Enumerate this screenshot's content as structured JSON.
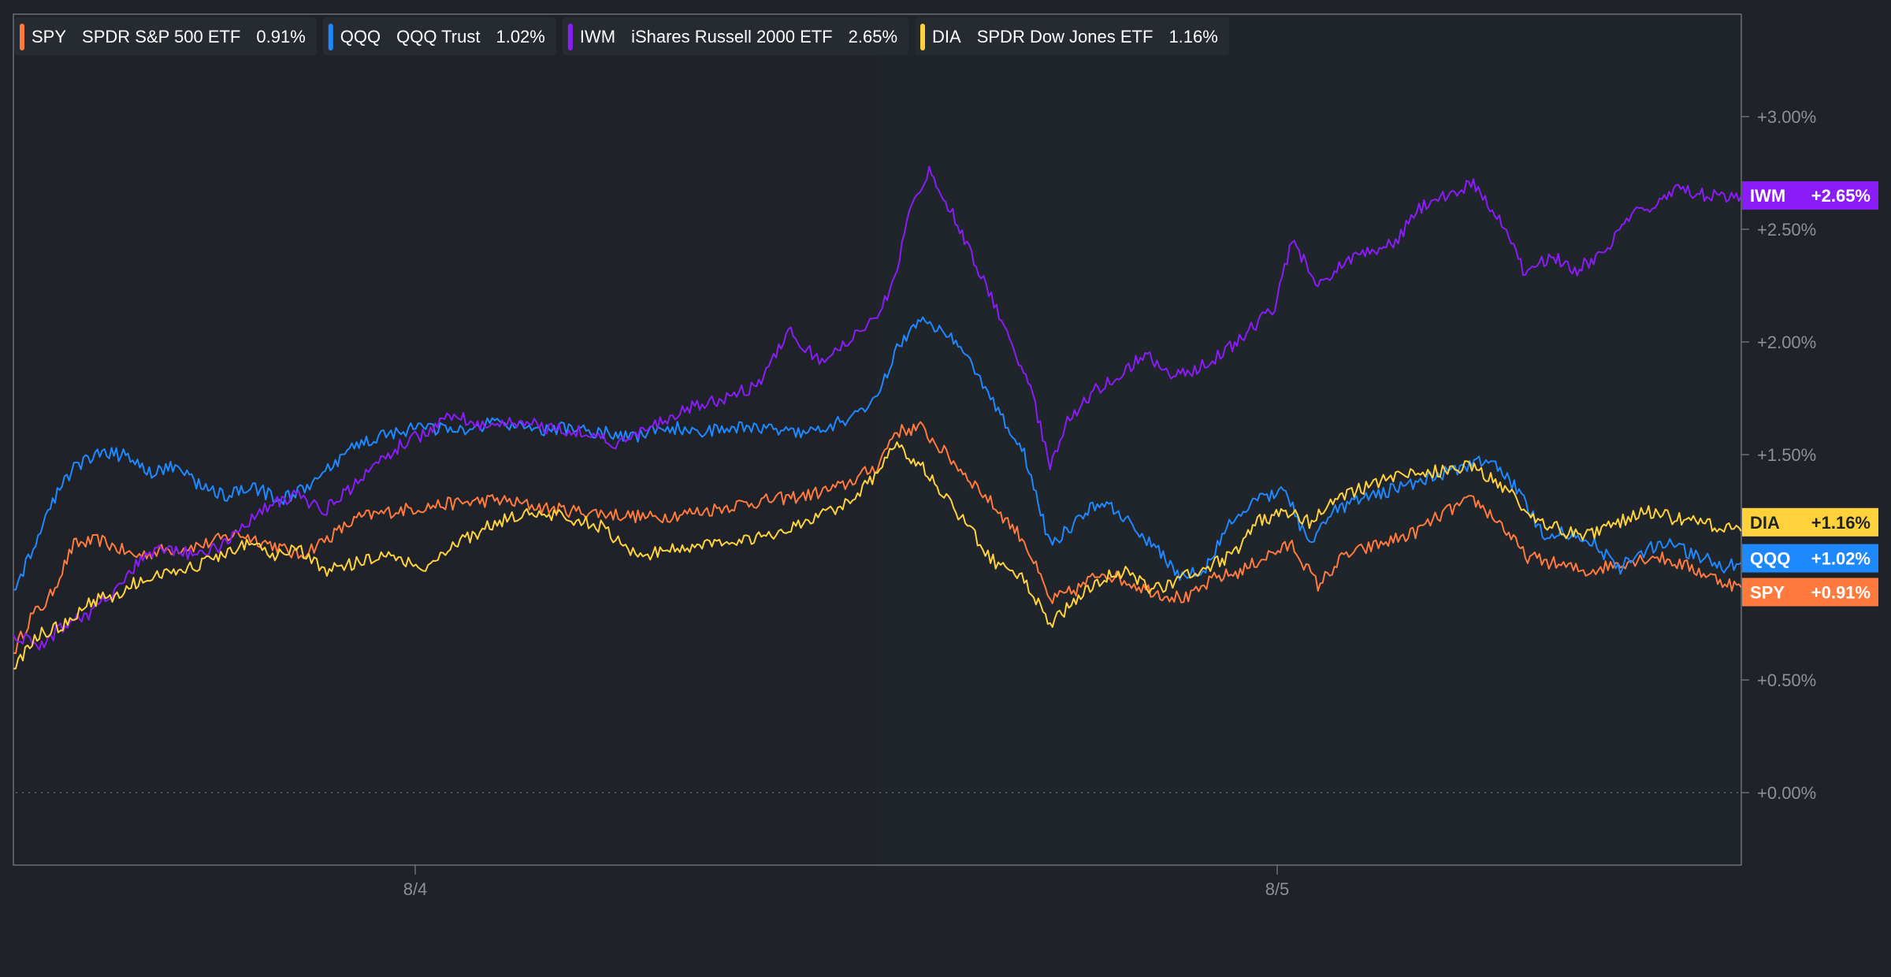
{
  "legend": [
    {
      "symbol": "SPY",
      "name": "SPDR S&P 500 ETF",
      "value": "0.91%",
      "color": "#ff7a3c"
    },
    {
      "symbol": "QQQ",
      "name": "QQQ Trust",
      "value": "1.02%",
      "color": "#1e88ff"
    },
    {
      "symbol": "IWM",
      "name": "iShares Russell 2000 ETF",
      "value": "2.65%",
      "color": "#8a1cf7"
    },
    {
      "symbol": "DIA",
      "name": "SPDR Dow Jones ETF",
      "value": "1.16%",
      "color": "#ffd23c"
    }
  ],
  "end_labels": [
    {
      "symbol": "IWM",
      "value": "+2.65%",
      "color": "#8a1cf7",
      "text_color": "#ffffff"
    },
    {
      "symbol": "DIA",
      "value": "+1.16%",
      "color": "#ffd23c",
      "text_color": "#1f2329"
    },
    {
      "symbol": "QQQ",
      "value": "+1.02%",
      "color": "#1e88ff",
      "text_color": "#ffffff"
    },
    {
      "symbol": "SPY",
      "value": "+0.91%",
      "color": "#ff7a3c",
      "text_color": "#ffffff"
    }
  ],
  "chart_data": {
    "type": "line",
    "x_ticks": [
      "8/4",
      "8/5"
    ],
    "y_ticks": [
      "+0.00%",
      "+0.50%",
      "+1.50%",
      "+2.00%",
      "+2.50%",
      "+3.00%"
    ],
    "ylim": [
      -0.32,
      3.45
    ],
    "zero_line": true,
    "legend_position": "top-left",
    "series": [
      {
        "name": "SPY",
        "color": "#ff7a3c",
        "points": [
          [
            0,
            0.62
          ],
          [
            0.01,
            0.78
          ],
          [
            0.02,
            0.85
          ],
          [
            0.035,
            1.1
          ],
          [
            0.05,
            1.12
          ],
          [
            0.07,
            1.05
          ],
          [
            0.09,
            1.08
          ],
          [
            0.11,
            1.1
          ],
          [
            0.13,
            1.15
          ],
          [
            0.15,
            1.1
          ],
          [
            0.165,
            1.05
          ],
          [
            0.18,
            1.12
          ],
          [
            0.2,
            1.22
          ],
          [
            0.22,
            1.25
          ],
          [
            0.25,
            1.28
          ],
          [
            0.28,
            1.3
          ],
          [
            0.31,
            1.26
          ],
          [
            0.34,
            1.24
          ],
          [
            0.37,
            1.22
          ],
          [
            0.4,
            1.25
          ],
          [
            0.42,
            1.28
          ],
          [
            0.44,
            1.3
          ],
          [
            0.46,
            1.32
          ],
          [
            0.48,
            1.36
          ],
          [
            0.5,
            1.45
          ],
          [
            0.51,
            1.6
          ],
          [
            0.525,
            1.62
          ],
          [
            0.54,
            1.5
          ],
          [
            0.555,
            1.38
          ],
          [
            0.57,
            1.25
          ],
          [
            0.585,
            1.12
          ],
          [
            0.6,
            0.85
          ],
          [
            0.615,
            0.9
          ],
          [
            0.63,
            0.98
          ],
          [
            0.65,
            0.92
          ],
          [
            0.665,
            0.88
          ],
          [
            0.68,
            0.86
          ],
          [
            0.695,
            0.95
          ],
          [
            0.71,
            0.98
          ],
          [
            0.725,
            1.05
          ],
          [
            0.74,
            1.1
          ],
          [
            0.755,
            0.92
          ],
          [
            0.77,
            1.05
          ],
          [
            0.79,
            1.1
          ],
          [
            0.81,
            1.15
          ],
          [
            0.83,
            1.25
          ],
          [
            0.845,
            1.3
          ],
          [
            0.86,
            1.2
          ],
          [
            0.875,
            1.05
          ],
          [
            0.89,
            1.02
          ],
          [
            0.91,
            0.98
          ],
          [
            0.93,
            1.02
          ],
          [
            0.95,
            1.05
          ],
          [
            0.97,
            1.0
          ],
          [
            0.985,
            0.95
          ],
          [
            1,
            0.91
          ]
        ]
      },
      {
        "name": "QQQ",
        "color": "#1e88ff",
        "points": [
          [
            0,
            0.9
          ],
          [
            0.01,
            1.05
          ],
          [
            0.02,
            1.25
          ],
          [
            0.035,
            1.45
          ],
          [
            0.05,
            1.5
          ],
          [
            0.065,
            1.5
          ],
          [
            0.08,
            1.42
          ],
          [
            0.095,
            1.45
          ],
          [
            0.11,
            1.35
          ],
          [
            0.125,
            1.32
          ],
          [
            0.14,
            1.35
          ],
          [
            0.155,
            1.3
          ],
          [
            0.17,
            1.35
          ],
          [
            0.185,
            1.45
          ],
          [
            0.2,
            1.55
          ],
          [
            0.22,
            1.6
          ],
          [
            0.24,
            1.62
          ],
          [
            0.26,
            1.6
          ],
          [
            0.28,
            1.65
          ],
          [
            0.3,
            1.6
          ],
          [
            0.32,
            1.62
          ],
          [
            0.34,
            1.6
          ],
          [
            0.36,
            1.58
          ],
          [
            0.38,
            1.62
          ],
          [
            0.4,
            1.6
          ],
          [
            0.42,
            1.62
          ],
          [
            0.44,
            1.62
          ],
          [
            0.46,
            1.6
          ],
          [
            0.48,
            1.65
          ],
          [
            0.5,
            1.75
          ],
          [
            0.51,
            1.95
          ],
          [
            0.525,
            2.1
          ],
          [
            0.54,
            2.05
          ],
          [
            0.555,
            1.9
          ],
          [
            0.57,
            1.7
          ],
          [
            0.585,
            1.5
          ],
          [
            0.6,
            1.1
          ],
          [
            0.615,
            1.2
          ],
          [
            0.63,
            1.3
          ],
          [
            0.645,
            1.2
          ],
          [
            0.66,
            1.1
          ],
          [
            0.675,
            0.95
          ],
          [
            0.69,
            1.0
          ],
          [
            0.705,
            1.2
          ],
          [
            0.72,
            1.3
          ],
          [
            0.735,
            1.35
          ],
          [
            0.75,
            1.1
          ],
          [
            0.765,
            1.25
          ],
          [
            0.78,
            1.3
          ],
          [
            0.8,
            1.35
          ],
          [
            0.82,
            1.4
          ],
          [
            0.84,
            1.45
          ],
          [
            0.855,
            1.48
          ],
          [
            0.87,
            1.35
          ],
          [
            0.885,
            1.15
          ],
          [
            0.9,
            1.15
          ],
          [
            0.915,
            1.1
          ],
          [
            0.93,
            1.0
          ],
          [
            0.945,
            1.08
          ],
          [
            0.96,
            1.1
          ],
          [
            0.975,
            1.05
          ],
          [
            0.99,
            1.0
          ],
          [
            1,
            1.02
          ]
        ]
      },
      {
        "name": "IWM",
        "color": "#8a1cf7",
        "points": [
          [
            0,
            0.7
          ],
          [
            0.015,
            0.65
          ],
          [
            0.03,
            0.75
          ],
          [
            0.045,
            0.8
          ],
          [
            0.06,
            0.9
          ],
          [
            0.075,
            1.05
          ],
          [
            0.09,
            1.08
          ],
          [
            0.105,
            1.05
          ],
          [
            0.12,
            1.1
          ],
          [
            0.135,
            1.2
          ],
          [
            0.15,
            1.28
          ],
          [
            0.165,
            1.32
          ],
          [
            0.18,
            1.25
          ],
          [
            0.195,
            1.35
          ],
          [
            0.21,
            1.45
          ],
          [
            0.225,
            1.55
          ],
          [
            0.24,
            1.6
          ],
          [
            0.255,
            1.68
          ],
          [
            0.27,
            1.62
          ],
          [
            0.29,
            1.65
          ],
          [
            0.31,
            1.62
          ],
          [
            0.33,
            1.6
          ],
          [
            0.35,
            1.55
          ],
          [
            0.37,
            1.62
          ],
          [
            0.39,
            1.7
          ],
          [
            0.41,
            1.75
          ],
          [
            0.43,
            1.8
          ],
          [
            0.45,
            2.05
          ],
          [
            0.465,
            1.92
          ],
          [
            0.48,
            1.98
          ],
          [
            0.5,
            2.1
          ],
          [
            0.51,
            2.3
          ],
          [
            0.52,
            2.6
          ],
          [
            0.53,
            2.75
          ],
          [
            0.545,
            2.55
          ],
          [
            0.56,
            2.3
          ],
          [
            0.575,
            2.05
          ],
          [
            0.59,
            1.75
          ],
          [
            0.6,
            1.45
          ],
          [
            0.61,
            1.65
          ],
          [
            0.625,
            1.78
          ],
          [
            0.64,
            1.85
          ],
          [
            0.655,
            1.95
          ],
          [
            0.67,
            1.85
          ],
          [
            0.685,
            1.88
          ],
          [
            0.7,
            1.95
          ],
          [
            0.715,
            2.05
          ],
          [
            0.73,
            2.15
          ],
          [
            0.74,
            2.45
          ],
          [
            0.755,
            2.25
          ],
          [
            0.77,
            2.35
          ],
          [
            0.785,
            2.4
          ],
          [
            0.8,
            2.45
          ],
          [
            0.815,
            2.6
          ],
          [
            0.83,
            2.65
          ],
          [
            0.845,
            2.7
          ],
          [
            0.86,
            2.55
          ],
          [
            0.875,
            2.3
          ],
          [
            0.89,
            2.38
          ],
          [
            0.905,
            2.32
          ],
          [
            0.92,
            2.4
          ],
          [
            0.935,
            2.55
          ],
          [
            0.95,
            2.62
          ],
          [
            0.965,
            2.68
          ],
          [
            0.98,
            2.65
          ],
          [
            1,
            2.65
          ]
        ]
      },
      {
        "name": "DIA",
        "color": "#ffd23c",
        "points": [
          [
            0,
            0.55
          ],
          [
            0.015,
            0.7
          ],
          [
            0.03,
            0.75
          ],
          [
            0.045,
            0.85
          ],
          [
            0.06,
            0.88
          ],
          [
            0.075,
            0.95
          ],
          [
            0.09,
            0.98
          ],
          [
            0.105,
            1.0
          ],
          [
            0.12,
            1.05
          ],
          [
            0.135,
            1.1
          ],
          [
            0.15,
            1.05
          ],
          [
            0.165,
            1.08
          ],
          [
            0.18,
            0.98
          ],
          [
            0.2,
            1.02
          ],
          [
            0.22,
            1.05
          ],
          [
            0.24,
            1.0
          ],
          [
            0.26,
            1.12
          ],
          [
            0.28,
            1.2
          ],
          [
            0.3,
            1.25
          ],
          [
            0.32,
            1.22
          ],
          [
            0.34,
            1.18
          ],
          [
            0.36,
            1.05
          ],
          [
            0.38,
            1.08
          ],
          [
            0.4,
            1.1
          ],
          [
            0.42,
            1.12
          ],
          [
            0.44,
            1.15
          ],
          [
            0.46,
            1.2
          ],
          [
            0.48,
            1.28
          ],
          [
            0.5,
            1.4
          ],
          [
            0.51,
            1.55
          ],
          [
            0.525,
            1.45
          ],
          [
            0.54,
            1.3
          ],
          [
            0.555,
            1.15
          ],
          [
            0.57,
            1.0
          ],
          [
            0.585,
            0.95
          ],
          [
            0.6,
            0.75
          ],
          [
            0.615,
            0.85
          ],
          [
            0.63,
            0.95
          ],
          [
            0.645,
            0.98
          ],
          [
            0.66,
            0.9
          ],
          [
            0.675,
            0.95
          ],
          [
            0.69,
            1.0
          ],
          [
            0.705,
            1.05
          ],
          [
            0.72,
            1.2
          ],
          [
            0.735,
            1.25
          ],
          [
            0.75,
            1.2
          ],
          [
            0.765,
            1.3
          ],
          [
            0.78,
            1.35
          ],
          [
            0.8,
            1.4
          ],
          [
            0.82,
            1.42
          ],
          [
            0.84,
            1.45
          ],
          [
            0.855,
            1.4
          ],
          [
            0.87,
            1.3
          ],
          [
            0.885,
            1.2
          ],
          [
            0.9,
            1.15
          ],
          [
            0.915,
            1.15
          ],
          [
            0.93,
            1.2
          ],
          [
            0.945,
            1.25
          ],
          [
            0.96,
            1.22
          ],
          [
            0.975,
            1.2
          ],
          [
            0.99,
            1.18
          ],
          [
            1,
            1.16
          ]
        ]
      }
    ]
  }
}
